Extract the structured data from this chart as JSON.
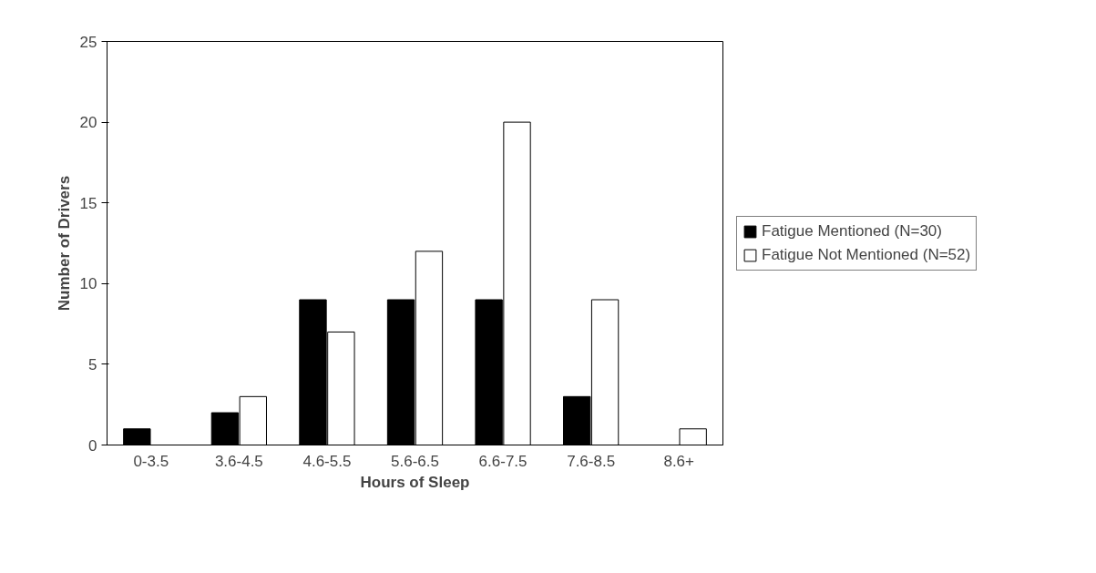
{
  "chart_data": {
    "type": "bar",
    "xlabel": "Hours of Sleep",
    "ylabel": "Number of Drivers",
    "categories": [
      "0-3.5",
      "3.6-4.5",
      "4.6-5.5",
      "5.6-6.5",
      "6.6-7.5",
      "7.6-8.5",
      "8.6+"
    ],
    "series": [
      {
        "name": "Fatigue Mentioned (N=30)",
        "color": "#000000",
        "values": [
          1,
          2,
          9,
          9,
          9,
          3,
          0
        ]
      },
      {
        "name": "Fatigue Not Mentioned (N=52)",
        "color": "#ffffff",
        "values": [
          0,
          3,
          7,
          12,
          20,
          9,
          1
        ]
      }
    ],
    "ylim": [
      0,
      25
    ],
    "yticks": [
      0,
      5,
      10,
      15,
      20,
      25
    ],
    "grid": false,
    "legend": "right"
  }
}
